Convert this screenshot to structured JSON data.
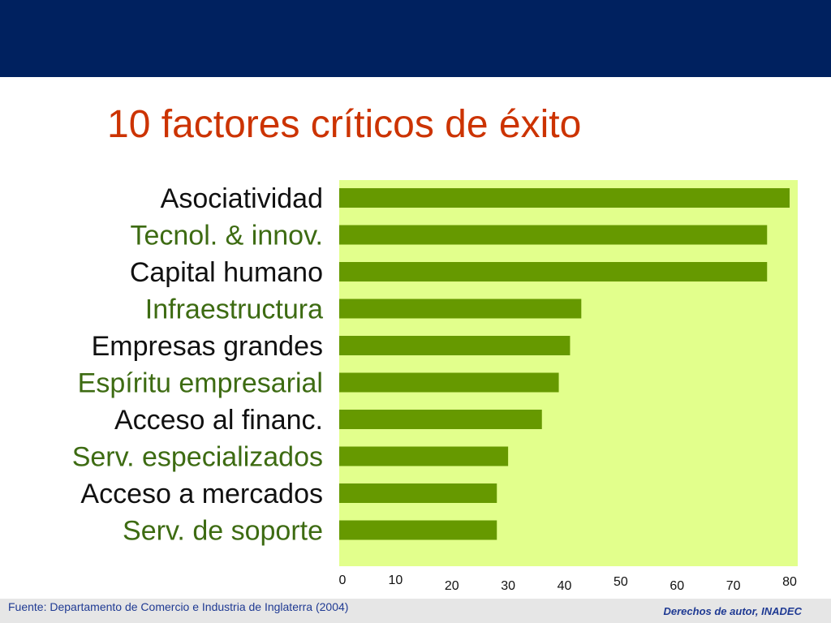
{
  "slide": {
    "title": "10 factores críticos de éxito",
    "source": "Fuente: Departamento de Comercio e Industria de Inglaterra (2004)",
    "copyright": "Derechos de autor, INADEC"
  },
  "colors": {
    "header_band": "#00215f",
    "title": "#cc3300",
    "plot_background": "#e2ff8c",
    "bar": "#669900",
    "label_black": "#111111",
    "label_green": "#3d6b12",
    "footer_text": "#1f3a93",
    "footer_band": "#e6e6e6"
  },
  "chart_data": {
    "type": "bar",
    "orientation": "horizontal",
    "categories": [
      "Asociatividad",
      "Tecnol. & innov.",
      "Capital humano",
      "Infraestructura",
      "Empresas grandes",
      "Espíritu empresarial",
      "Acceso al financ.",
      "Serv. especializados",
      "Acceso a mercados",
      "Serv. de soporte"
    ],
    "label_colors": [
      "black",
      "green",
      "black",
      "green",
      "black",
      "green",
      "black",
      "green",
      "black",
      "green"
    ],
    "values": [
      80,
      76,
      76,
      43,
      41,
      39,
      36,
      30,
      28,
      28
    ],
    "xlim": [
      0,
      80
    ],
    "x_ticks": [
      0,
      10,
      20,
      30,
      40,
      50,
      60,
      70,
      80
    ],
    "grid": false,
    "legend": "none"
  }
}
